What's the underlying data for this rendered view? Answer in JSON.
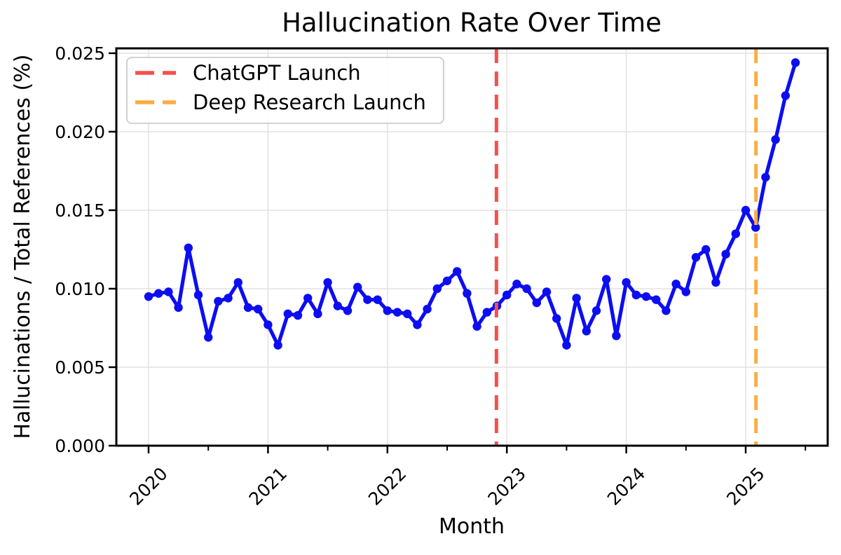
{
  "figure": {
    "background": "#ffffff"
  },
  "chart_data": {
    "type": "line",
    "title": "Hallucination Rate Over Time",
    "xlabel": "Month",
    "ylabel": "Hallucinations / Total References (%)",
    "series_name": "hallucination-rate",
    "line_color": "#0d0df2",
    "marker": "circle",
    "x": [
      "2020-01",
      "2020-02",
      "2020-03",
      "2020-04",
      "2020-05",
      "2020-06",
      "2020-07",
      "2020-08",
      "2020-09",
      "2020-10",
      "2020-11",
      "2020-12",
      "2021-01",
      "2021-02",
      "2021-03",
      "2021-04",
      "2021-05",
      "2021-06",
      "2021-07",
      "2021-08",
      "2021-09",
      "2021-10",
      "2021-11",
      "2021-12",
      "2022-01",
      "2022-02",
      "2022-03",
      "2022-04",
      "2022-05",
      "2022-06",
      "2022-07",
      "2022-08",
      "2022-09",
      "2022-10",
      "2022-11",
      "2022-12",
      "2023-01",
      "2023-02",
      "2023-03",
      "2023-04",
      "2023-05",
      "2023-06",
      "2023-07",
      "2023-08",
      "2023-09",
      "2023-10",
      "2023-11",
      "2023-12",
      "2024-01",
      "2024-02",
      "2024-03",
      "2024-04",
      "2024-05",
      "2024-06",
      "2024-07",
      "2024-08",
      "2024-09",
      "2024-10",
      "2024-11",
      "2024-12",
      "2025-01",
      "2025-02",
      "2025-03",
      "2025-04",
      "2025-05",
      "2025-06"
    ],
    "values": [
      0.0095,
      0.0097,
      0.0098,
      0.0088,
      0.0126,
      0.0096,
      0.0069,
      0.0092,
      0.0094,
      0.0104,
      0.0088,
      0.0087,
      0.0077,
      0.0064,
      0.0084,
      0.0083,
      0.0094,
      0.0084,
      0.0104,
      0.0089,
      0.0086,
      0.0101,
      0.0093,
      0.0093,
      0.0086,
      0.0085,
      0.0084,
      0.0077,
      0.0087,
      0.01,
      0.0105,
      0.0111,
      0.0097,
      0.0076,
      0.0085,
      0.0089,
      0.0096,
      0.0103,
      0.01,
      0.0091,
      0.0098,
      0.0081,
      0.0064,
      0.0094,
      0.0073,
      0.0086,
      0.0106,
      0.007,
      0.0104,
      0.0096,
      0.0095,
      0.0093,
      0.0086,
      0.0103,
      0.0098,
      0.012,
      0.0125,
      0.0104,
      0.0122,
      0.0135,
      0.015,
      0.0139,
      0.0171,
      0.0195,
      0.0223,
      0.0244
    ],
    "ylim": [
      0,
      0.02531
    ],
    "yticks": {
      "values": [
        0,
        0.005,
        0.01,
        0.015,
        0.02,
        0.025
      ],
      "labels": [
        "0.000",
        "0.005",
        "0.010",
        "0.015",
        "0.020",
        "0.025"
      ]
    },
    "xticks": {
      "major": [
        {
          "label": "2020",
          "month": "2020-01"
        },
        {
          "label": "2021",
          "month": "2021-01"
        },
        {
          "label": "2022",
          "month": "2022-01"
        },
        {
          "label": "2023",
          "month": "2023-01"
        },
        {
          "label": "2024",
          "month": "2024-01"
        },
        {
          "label": "2025",
          "month": "2025-01"
        }
      ],
      "minor_months": [
        "2020-07",
        "2021-07",
        "2022-07",
        "2023-07",
        "2024-07",
        "2025-07"
      ]
    },
    "grid": true,
    "grid_color": "#e2e2e2",
    "legend": {
      "position": "upper-left",
      "entries": [
        {
          "label": "ChatGPT Launch",
          "color": "#f4514c",
          "style": "dashed"
        },
        {
          "label": "Deep Research Launch",
          "color": "#fbad42",
          "style": "dashed"
        }
      ]
    },
    "vlines": [
      {
        "name": "chatgpt-launch",
        "label": "ChatGPT Launch",
        "date": "2022-11-30",
        "color": "#f4514c",
        "style": "dashed"
      },
      {
        "name": "deep-research-launch",
        "label": "Deep Research Launch",
        "date": "2025-02-02",
        "color": "#fbad42",
        "style": "dashed"
      }
    ]
  }
}
